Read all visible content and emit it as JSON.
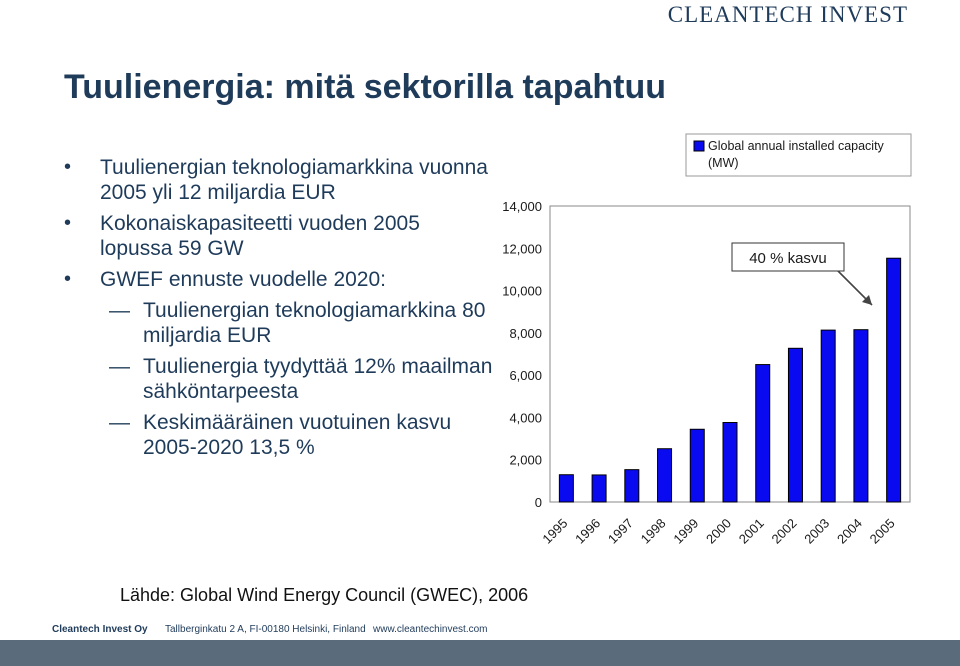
{
  "header": {
    "logo_text": "CLEANTECH INVEST"
  },
  "title": "Tuulienergia: mitä sektorilla tapahtuu",
  "bullets": [
    {
      "text": "Tuulienergian teknologiamarkkina vuonna 2005 yli 12 miljardia EUR"
    },
    {
      "text": "Kokonaiskapasiteetti vuoden 2005 lopussa 59 GW"
    },
    {
      "text": "GWEF ennuste vuodelle 2020:"
    }
  ],
  "sub_bullets": [
    {
      "text": "Tuulienergian teknologiamarkkina 80 miljardia EUR"
    },
    {
      "text": "Tuulienergia tyydyttää 12% maailman sähköntarpeesta"
    },
    {
      "text": "Keskimääräinen vuotuinen kasvu 2005-2020 13,5 %"
    }
  ],
  "source": "Lähde: Global Wind Energy Council (GWEC), 2006",
  "footer": {
    "company": "Cleantech Invest Oy",
    "address": "Tallberginkatu 2 A, FI-00180 Helsinki, Finland",
    "web": "www.cleantechinvest.com"
  },
  "colors": {
    "bar": "#0a0af0",
    "text": "#1f3b5a",
    "band": "#5a6b7b"
  },
  "chart_data": {
    "type": "bar",
    "categories": [
      "1995",
      "1996",
      "1997",
      "1998",
      "1999",
      "2000",
      "2001",
      "2002",
      "2003",
      "2004",
      "2005"
    ],
    "series": [
      {
        "name": "Global annual installed capacity (MW)",
        "values": [
          1290,
          1280,
          1530,
          2520,
          3440,
          3760,
          6500,
          7270,
          8130,
          8150,
          11530
        ]
      }
    ],
    "yticks": [
      "0",
      "2,000",
      "4,000",
      "6,000",
      "8,000",
      "10,000",
      "12,000",
      "14,000"
    ],
    "ylim": [
      0,
      14000
    ],
    "legend_position": "top-right",
    "annotation": "40 % kasvu",
    "grid": false
  }
}
